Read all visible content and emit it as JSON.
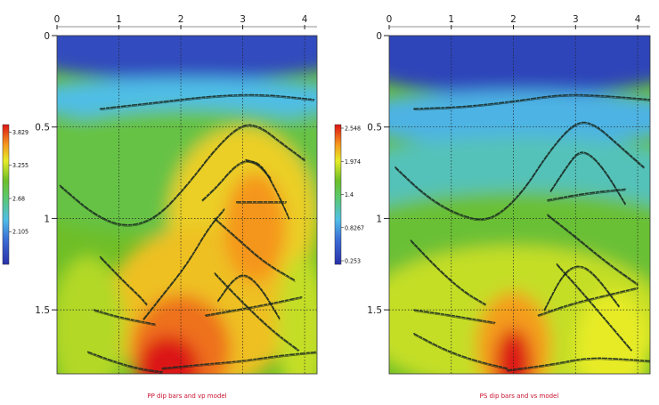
{
  "chart_data": [
    {
      "type": "heatmap",
      "title": "PP dip bars and vp model",
      "x_ticks": [
        "0",
        "1",
        "2",
        "3",
        "4"
      ],
      "y_ticks": [
        "0",
        "0.5",
        "1",
        "1.5"
      ],
      "xlim": [
        0,
        4.2
      ],
      "ylim": [
        1.85,
        0
      ],
      "grid": true,
      "colorbar": {
        "ticks": [
          "3.829",
          "3.255",
          "2.68",
          "2.105"
        ],
        "range": [
          1.6,
          3.9
        ],
        "colormap": "rainbow (blue-cyan-green-yellow-red)"
      },
      "dip_events": [
        {
          "name": "shallow",
          "points": [
            [
              0.7,
              0.4
            ],
            [
              1.5,
              0.37
            ],
            [
              2.5,
              0.33
            ],
            [
              3.3,
              0.32
            ],
            [
              4.15,
              0.35
            ]
          ]
        },
        {
          "name": "large-dome",
          "points": [
            [
              0.05,
              0.82
            ],
            [
              0.6,
              0.98
            ],
            [
              1.1,
              1.05
            ],
            [
              1.6,
              1.0
            ],
            [
              2.1,
              0.82
            ],
            [
              2.6,
              0.6
            ],
            [
              3.0,
              0.48
            ],
            [
              3.3,
              0.5
            ],
            [
              3.6,
              0.58
            ],
            [
              4.0,
              0.68
            ]
          ]
        },
        {
          "name": "inner-dome-left",
          "points": [
            [
              2.35,
              0.9
            ],
            [
              2.6,
              0.82
            ],
            [
              2.85,
              0.72
            ],
            [
              3.05,
              0.68
            ],
            [
              3.25,
              0.7
            ],
            [
              3.45,
              0.78
            ]
          ]
        },
        {
          "name": "inner-dome-right",
          "points": [
            [
              3.05,
              0.68
            ],
            [
              3.3,
              0.7
            ],
            [
              3.55,
              0.85
            ],
            [
              3.75,
              1.0
            ]
          ]
        },
        {
          "name": "flat-0.9",
          "points": [
            [
              2.9,
              0.91
            ],
            [
              3.7,
              0.91
            ]
          ]
        },
        {
          "name": "dipping-1",
          "points": [
            [
              2.55,
              1.0
            ],
            [
              2.95,
              1.12
            ],
            [
              3.35,
              1.24
            ],
            [
              3.85,
              1.34
            ]
          ]
        },
        {
          "name": "long-ramp",
          "points": [
            [
              1.4,
              1.55
            ],
            [
              1.75,
              1.4
            ],
            [
              2.1,
              1.25
            ],
            [
              2.45,
              1.05
            ],
            [
              2.7,
              0.95
            ]
          ]
        },
        {
          "name": "small-dome",
          "points": [
            [
              2.6,
              1.45
            ],
            [
              2.85,
              1.33
            ],
            [
              3.05,
              1.3
            ],
            [
              3.3,
              1.38
            ],
            [
              3.6,
              1.55
            ]
          ]
        },
        {
          "name": "lower-left-1",
          "points": [
            [
              0.7,
              1.21
            ],
            [
              1.1,
              1.35
            ],
            [
              1.35,
              1.43
            ],
            [
              1.45,
              1.47
            ]
          ]
        },
        {
          "name": "lower-left-2",
          "points": [
            [
              0.6,
              1.5
            ],
            [
              1.0,
              1.54
            ],
            [
              1.6,
              1.58
            ]
          ]
        },
        {
          "name": "lower-right-1",
          "points": [
            [
              2.4,
              1.53
            ],
            [
              2.9,
              1.5
            ],
            [
              3.4,
              1.47
            ],
            [
              3.95,
              1.43
            ]
          ]
        },
        {
          "name": "dipping-2",
          "points": [
            [
              2.55,
              1.3
            ],
            [
              3.0,
              1.46
            ],
            [
              3.5,
              1.62
            ],
            [
              3.9,
              1.72
            ]
          ]
        },
        {
          "name": "deep-left",
          "points": [
            [
              0.5,
              1.73
            ],
            [
              0.9,
              1.78
            ],
            [
              1.3,
              1.82
            ],
            [
              1.7,
              1.84
            ]
          ]
        },
        {
          "name": "deep-right",
          "points": [
            [
              1.7,
              1.82
            ],
            [
              2.3,
              1.8
            ],
            [
              3.0,
              1.78
            ],
            [
              3.6,
              1.75
            ],
            [
              4.2,
              1.73
            ]
          ]
        }
      ]
    },
    {
      "type": "heatmap",
      "title": "PS dip bars and vs model",
      "x_ticks": [
        "0",
        "1",
        "2",
        "3",
        "4"
      ],
      "y_ticks": [
        "0",
        "0.5",
        "1",
        "1.5"
      ],
      "xlim": [
        0,
        4.2
      ],
      "ylim": [
        1.85,
        0
      ],
      "grid": true,
      "colorbar": {
        "ticks": [
          "2.548",
          "1.974",
          "1.4",
          "0.8267",
          "0.253"
        ],
        "range": [
          0.253,
          2.548
        ],
        "colormap": "rainbow (blue-cyan-green-yellow-red)"
      },
      "dip_events": [
        {
          "name": "shallow",
          "points": [
            [
              0.4,
              0.4
            ],
            [
              1.2,
              0.39
            ],
            [
              2.0,
              0.36
            ],
            [
              2.8,
              0.32
            ],
            [
              3.5,
              0.33
            ],
            [
              4.2,
              0.35
            ]
          ]
        },
        {
          "name": "large-dome",
          "points": [
            [
              0.1,
              0.72
            ],
            [
              0.6,
              0.88
            ],
            [
              1.1,
              0.98
            ],
            [
              1.6,
              1.02
            ],
            [
              2.1,
              0.88
            ],
            [
              2.6,
              0.62
            ],
            [
              3.0,
              0.47
            ],
            [
              3.3,
              0.48
            ],
            [
              3.7,
              0.6
            ],
            [
              4.1,
              0.72
            ]
          ]
        },
        {
          "name": "inner-dome",
          "points": [
            [
              2.6,
              0.85
            ],
            [
              2.85,
              0.72
            ],
            [
              3.05,
              0.63
            ],
            [
              3.25,
              0.65
            ],
            [
              3.5,
              0.75
            ],
            [
              3.8,
              0.92
            ]
          ]
        },
        {
          "name": "flat-0.88",
          "points": [
            [
              2.55,
              0.9
            ],
            [
              3.2,
              0.86
            ],
            [
              3.8,
              0.84
            ]
          ]
        },
        {
          "name": "dipping-1",
          "points": [
            [
              2.55,
              0.98
            ],
            [
              3.0,
              1.1
            ],
            [
              3.5,
              1.24
            ],
            [
              4.0,
              1.36
            ]
          ]
        },
        {
          "name": "small-dome",
          "points": [
            [
              2.5,
              1.5
            ],
            [
              2.8,
              1.3
            ],
            [
              3.05,
              1.25
            ],
            [
              3.3,
              1.3
            ],
            [
              3.7,
              1.48
            ]
          ]
        },
        {
          "name": "mid-left",
          "points": [
            [
              0.35,
              1.12
            ],
            [
              0.8,
              1.28
            ],
            [
              1.2,
              1.4
            ],
            [
              1.55,
              1.47
            ]
          ]
        },
        {
          "name": "lower-left",
          "points": [
            [
              0.4,
              1.5
            ],
            [
              1.0,
              1.53
            ],
            [
              1.7,
              1.57
            ]
          ]
        },
        {
          "name": "lower-right",
          "points": [
            [
              2.4,
              1.53
            ],
            [
              2.9,
              1.47
            ],
            [
              3.5,
              1.42
            ],
            [
              4.0,
              1.38
            ]
          ]
        },
        {
          "name": "ramp-right",
          "points": [
            [
              2.7,
              1.25
            ],
            [
              3.1,
              1.4
            ],
            [
              3.55,
              1.58
            ],
            [
              3.9,
              1.72
            ]
          ]
        },
        {
          "name": "deep-left",
          "points": [
            [
              0.4,
              1.63
            ],
            [
              0.9,
              1.72
            ],
            [
              1.4,
              1.78
            ],
            [
              1.9,
              1.82
            ]
          ]
        },
        {
          "name": "deep-right",
          "points": [
            [
              1.9,
              1.83
            ],
            [
              2.6,
              1.8
            ],
            [
              3.2,
              1.76
            ],
            [
              3.8,
              1.77
            ],
            [
              4.2,
              1.78
            ]
          ]
        }
      ]
    }
  ]
}
